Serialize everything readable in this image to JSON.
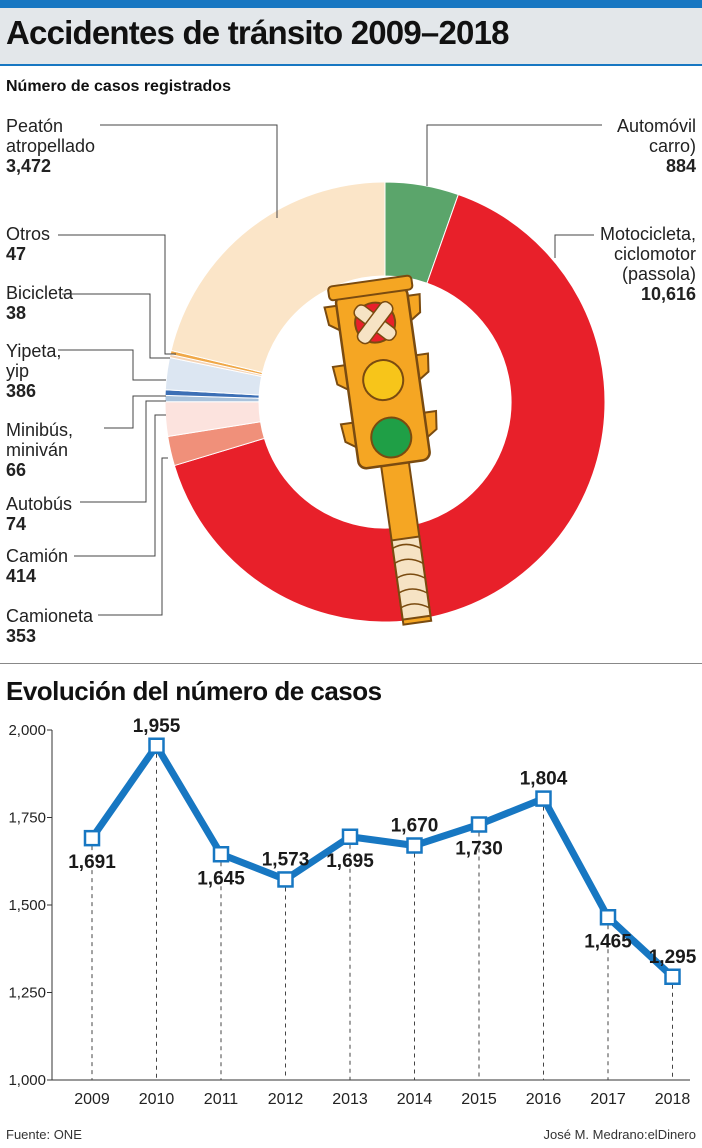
{
  "header": {
    "title": "Accidentes de tránsito 2009–2018",
    "subtitle": "Número de casos registrados",
    "section2_title": "Evolución del número de casos"
  },
  "footer": {
    "source": "Fuente: ONE",
    "credit": "José M. Medrano:elDinero"
  },
  "colors": {
    "accent": "#1777c2",
    "line": "#1777c2",
    "motocicleta": "#e8202a",
    "automovil": "#5ba56b",
    "peaton": "#fbe5c8"
  },
  "icons": {
    "traffic_light": "traffic-light-icon",
    "bandage": "bandage-icon"
  },
  "chart_data": [
    {
      "type": "pie",
      "variant": "donut",
      "title": "Número de casos registrados",
      "slices": [
        {
          "label": "Automóvil carro)",
          "value": 884,
          "display": "884",
          "color": "#5ba56b"
        },
        {
          "label": "Motocicleta, ciclomotor (passola)",
          "value": 10616,
          "display": "10,616",
          "color": "#e8202a"
        },
        {
          "label": "Camioneta",
          "value": 353,
          "display": "353",
          "color": "#f0907a"
        },
        {
          "label": "Camión",
          "value": 414,
          "display": "414",
          "color": "#fce3de"
        },
        {
          "label": "Autobús",
          "value": 74,
          "display": "74",
          "color": "#aac3dc"
        },
        {
          "label": "Minibús, miniván",
          "value": 66,
          "display": "66",
          "color": "#3c6fb5"
        },
        {
          "label": "Yipeta, yip",
          "value": 386,
          "display": "386",
          "color": "#dce6f2"
        },
        {
          "label": "Bicicleta",
          "value": 38,
          "display": "38",
          "color": "#f5d3b4"
        },
        {
          "label": "Otros",
          "value": 47,
          "display": "47",
          "color": "#f0a848"
        },
        {
          "label": "Peatón atropellado",
          "value": 3472,
          "display": "3,472",
          "color": "#fbe5c8"
        }
      ]
    },
    {
      "type": "line",
      "title": "Evolución del número de casos",
      "x": [
        "2009",
        "2010",
        "2011",
        "2012",
        "2013",
        "2014",
        "2015",
        "2016",
        "2017",
        "2018"
      ],
      "series": [
        {
          "values": [
            1691,
            1955,
            1645,
            1573,
            1695,
            1670,
            1730,
            1804,
            1465,
            1295
          ],
          "labels": [
            "1,691",
            "1,955",
            "1,645",
            "1,573",
            "1,695",
            "1,670",
            "1,730",
            "1,804",
            "1,465",
            "1,295"
          ]
        }
      ],
      "yticks": [
        "1,000",
        "1,250",
        "1,500",
        "1,750",
        "2,000"
      ],
      "ytick_values": [
        1000,
        1250,
        1500,
        1750,
        2000
      ],
      "ylim": [
        1000,
        2000
      ],
      "grid": "vertical dashed drop lines"
    }
  ]
}
